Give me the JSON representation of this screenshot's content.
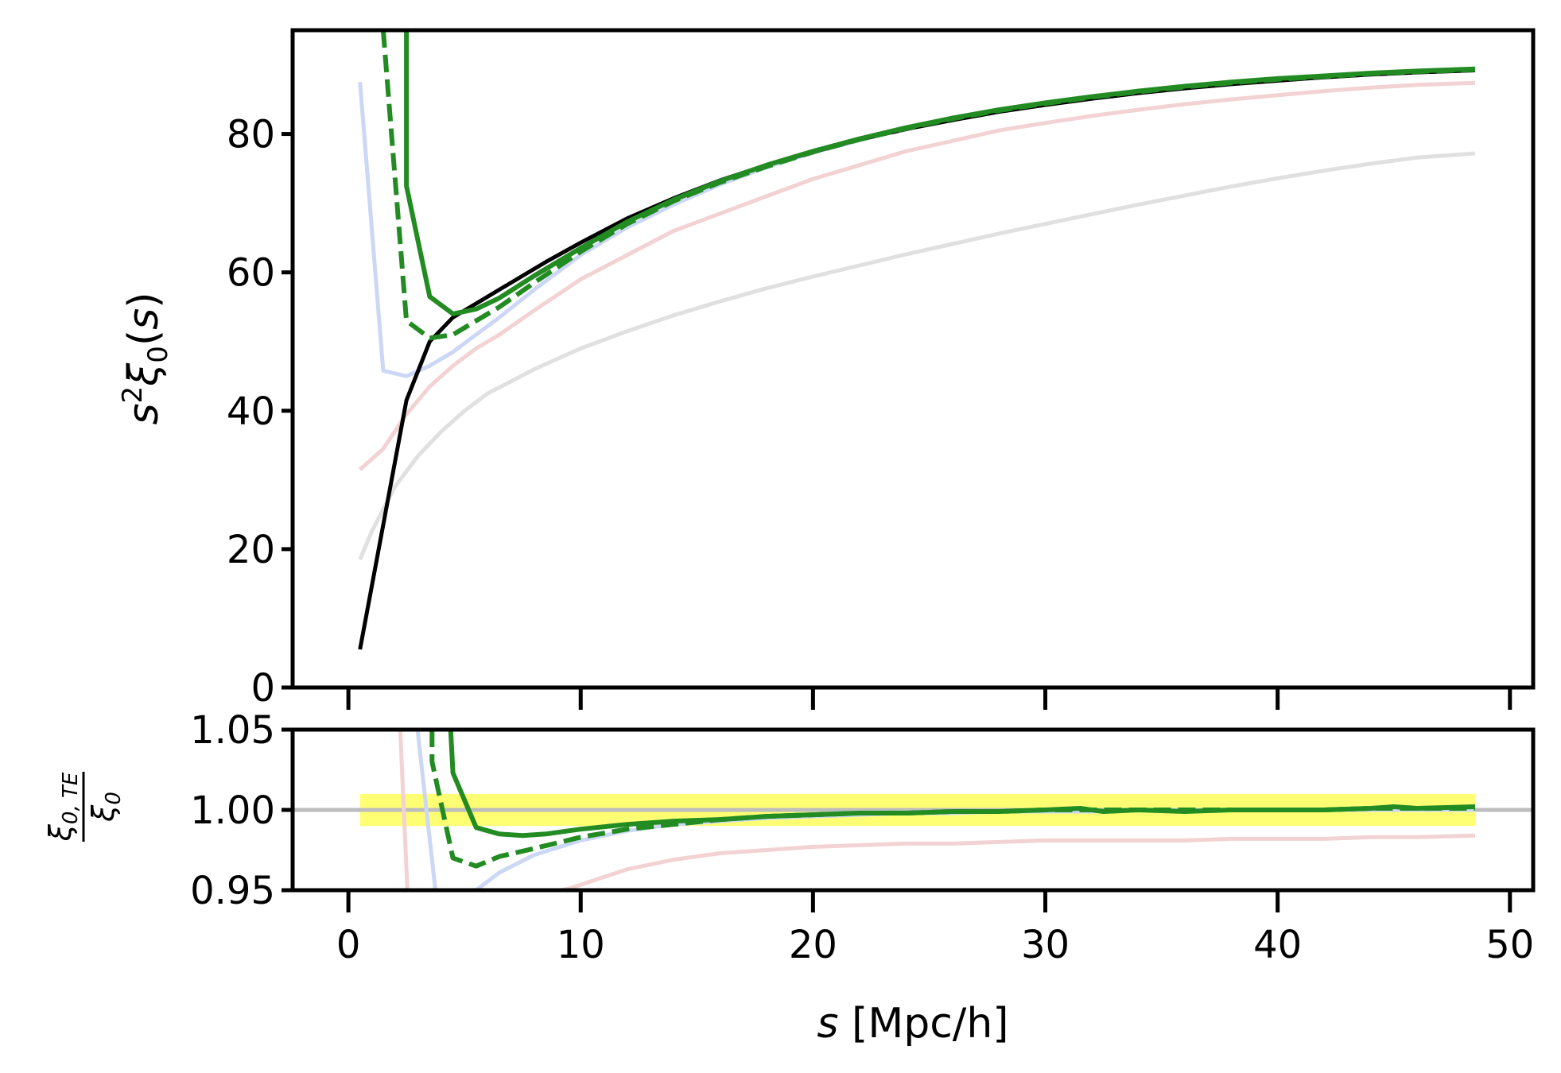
{
  "chart_data": [
    {
      "type": "line",
      "panel": "top",
      "ylabel": "s²ξ₀(s)",
      "xlim": [
        -2.4,
        51
      ],
      "ylim": [
        0,
        95
      ],
      "yticks": [
        0,
        20,
        40,
        60,
        80
      ],
      "ytick_labels": [
        "0",
        "20",
        "40",
        "60",
        "80"
      ],
      "xticks": [
        0,
        10,
        20,
        30,
        40,
        50
      ],
      "series": [
        {
          "color": "#e0e0e0",
          "width": 5,
          "dash": "solid",
          "x": [
            0.5,
            1,
            2,
            3,
            4,
            5,
            6,
            8,
            10,
            12,
            14,
            16,
            18,
            20,
            22,
            24,
            26,
            28,
            30,
            32,
            34,
            36,
            38,
            40,
            42,
            44,
            46,
            48.5
          ],
          "y": [
            18.5,
            22.5,
            29,
            33.5,
            37,
            40,
            42.5,
            46,
            49,
            51.5,
            53.8,
            55.8,
            57.7,
            59.4,
            61,
            62.6,
            64.1,
            65.6,
            67,
            68.4,
            69.8,
            71.1,
            72.4,
            73.6,
            74.7,
            75.7,
            76.6,
            77.2
          ]
        },
        {
          "color": "#f2d2d2",
          "width": 5,
          "dash": "solid",
          "x": [
            0.5,
            1.5,
            2.5,
            3.5,
            4.5,
            5.5,
            6.5,
            8,
            10,
            12,
            14,
            16,
            18,
            20,
            22,
            24,
            26,
            28,
            30,
            32,
            34,
            36,
            38,
            40,
            42,
            44,
            46,
            48.5
          ],
          "y": [
            31.5,
            34.5,
            39.5,
            43.5,
            46.5,
            49,
            51,
            54.5,
            59,
            62.5,
            66,
            68.5,
            71,
            73.5,
            75.5,
            77.5,
            79,
            80.5,
            81.6,
            82.6,
            83.5,
            84.3,
            85,
            85.6,
            86.2,
            86.7,
            87.1,
            87.4
          ]
        },
        {
          "color": "#ccd7f5",
          "width": 5,
          "dash": "solid",
          "x": [
            0.5,
            1.5,
            2.5,
            3.5,
            4.5,
            5.5,
            6.5,
            8,
            10,
            12,
            14,
            16,
            18,
            20,
            22,
            24,
            26,
            28,
            30,
            32,
            34,
            36,
            38,
            40,
            42,
            44,
            46,
            48.5
          ],
          "y": [
            87.5,
            45.8,
            45,
            46.5,
            48.5,
            51,
            53.5,
            57.5,
            62.5,
            66.5,
            69.8,
            72.7,
            75.2,
            77.3,
            79.1,
            80.8,
            82.2,
            83.4,
            84.4,
            85.3,
            86.1,
            86.7,
            87.3,
            87.8,
            88.2,
            88.6,
            89,
            89.2
          ]
        },
        {
          "color": "#000000",
          "width": 5,
          "dash": "solid",
          "x": [
            0.5,
            1.5,
            2.5,
            3.5,
            4.5,
            5.5,
            6.5,
            7.5,
            8.5,
            10,
            12,
            14,
            16,
            18,
            20,
            22,
            24,
            26,
            28,
            30,
            32,
            34,
            36,
            38,
            40,
            42,
            44,
            46,
            48.5
          ],
          "y": [
            5.5,
            23.5,
            41.5,
            50,
            53.5,
            55.5,
            57.5,
            59.5,
            61.5,
            64.3,
            67.8,
            70.7,
            73.3,
            75.5,
            77.4,
            79.2,
            80.7,
            82,
            83.2,
            84.2,
            85.1,
            85.9,
            86.6,
            87.2,
            87.7,
            88.2,
            88.6,
            88.9,
            89.2
          ]
        },
        {
          "color": "#228b22",
          "width": 6,
          "dash": "dashed",
          "x": [
            1.5,
            2.5,
            3.5,
            4.5,
            5.5,
            6.5,
            8,
            10,
            12,
            14,
            16,
            18,
            20,
            22,
            24,
            26,
            28,
            30,
            32,
            34,
            36,
            38,
            40,
            42,
            44,
            46,
            48.5
          ],
          "y": [
            95,
            53,
            50.5,
            51,
            53,
            55,
            58.5,
            63,
            67,
            70.3,
            73,
            75.3,
            77.4,
            79.2,
            80.8,
            82.2,
            83.4,
            84.4,
            85.3,
            86.1,
            86.8,
            87.4,
            87.9,
            88.3,
            88.7,
            89,
            89.3
          ]
        },
        {
          "color": "#228b22",
          "width": 6,
          "dash": "solid",
          "x": [
            2.5,
            2.5,
            3.5,
            4.5,
            5.5,
            6.5,
            8,
            10,
            12,
            14,
            16,
            18,
            20,
            22,
            24,
            26,
            28,
            30,
            32,
            34,
            36,
            38,
            40,
            42,
            44,
            46,
            48.5
          ],
          "y": [
            95,
            72.5,
            56.5,
            54,
            54.7,
            56.3,
            59.5,
            63.5,
            67.3,
            70.5,
            73.2,
            75.5,
            77.5,
            79.3,
            80.9,
            82.3,
            83.5,
            84.5,
            85.4,
            86.2,
            86.9,
            87.5,
            88,
            88.4,
            88.8,
            89.1,
            89.4
          ]
        }
      ]
    },
    {
      "type": "line",
      "panel": "bottom",
      "ylabel_numerator": "ξ0,TE",
      "ylabel_denominator": "ξ0",
      "xlabel": "s [Mpc/h]",
      "xlim": [
        -2.4,
        51
      ],
      "ylim": [
        0.95,
        1.05
      ],
      "yticks": [
        0.95,
        1.0,
        1.05
      ],
      "ytick_labels": [
        "0.95",
        "1.00",
        "1.05"
      ],
      "xticks": [
        0,
        10,
        20,
        30,
        40,
        50
      ],
      "xtick_labels": [
        "0",
        "10",
        "20",
        "30",
        "40",
        "50"
      ],
      "band": {
        "y": [
          0.99,
          1.01
        ],
        "x": [
          0.5,
          48.5
        ],
        "color": "#ffff00",
        "opacity": 0.55
      },
      "reference_line": {
        "y": 1.0,
        "color": "#bdbdbd"
      },
      "series": [
        {
          "color": "#f2d2d2",
          "width": 5,
          "dash": "solid",
          "x": [
            2.2,
            2.6,
            9.5,
            12,
            14,
            16,
            18,
            20,
            22,
            24,
            26,
            28,
            30,
            32,
            34,
            36,
            38,
            40,
            42,
            44,
            46,
            48.5
          ],
          "y": [
            1.06,
            0.93,
            0.951,
            0.963,
            0.969,
            0.973,
            0.975,
            0.977,
            0.978,
            0.979,
            0.979,
            0.98,
            0.981,
            0.981,
            0.981,
            0.981,
            0.982,
            0.982,
            0.982,
            0.983,
            0.983,
            0.984
          ]
        },
        {
          "color": "#ccd7f5",
          "width": 5,
          "dash": "solid",
          "x": [
            2.9,
            3.9,
            5.5,
            6.5,
            8,
            10,
            12,
            14,
            16,
            18,
            20,
            22,
            24,
            26,
            28,
            30,
            32,
            34,
            36,
            38,
            40,
            42,
            44,
            46,
            48.5
          ],
          "y": [
            1.06,
            0.93,
            0.95,
            0.961,
            0.972,
            0.981,
            0.987,
            0.991,
            0.993,
            0.995,
            0.996,
            0.997,
            0.998,
            0.998,
            0.999,
            0.999,
            0.999,
            1.0,
            1.0,
            1.0,
            1.0,
            1.0,
            1.0,
            1.0,
            1.0
          ]
        },
        {
          "color": "#228b22",
          "width": 6,
          "dash": "dashed",
          "x": [
            3.6,
            3.6,
            4.5,
            5.5,
            6.5,
            8,
            10,
            12,
            14,
            16,
            18,
            20,
            22,
            24,
            26,
            28,
            30,
            32,
            34,
            36,
            38,
            40,
            42,
            44,
            46,
            48.5
          ],
          "y": [
            1.05,
            1.03,
            0.97,
            0.965,
            0.971,
            0.976,
            0.983,
            0.988,
            0.991,
            0.994,
            0.996,
            0.997,
            0.998,
            0.998,
            0.999,
            0.999,
            1.0,
            1.0,
            1.0,
            1.0,
            1.0,
            1.0,
            1.0,
            1.001,
            1.001,
            1.001
          ]
        },
        {
          "color": "#228b22",
          "width": 6,
          "dash": "solid",
          "x": [
            4.4,
            4.5,
            5.5,
            6.5,
            7.5,
            8.5,
            10,
            12,
            14,
            16,
            18,
            20,
            22,
            24,
            26,
            28,
            30,
            31.5,
            32.5,
            34,
            36,
            38,
            40,
            42,
            44,
            45,
            46,
            48.5
          ],
          "y": [
            1.05,
            1.023,
            0.989,
            0.985,
            0.984,
            0.985,
            0.988,
            0.991,
            0.993,
            0.994,
            0.996,
            0.997,
            0.998,
            0.998,
            0.999,
            0.999,
            1.0,
            1.001,
            0.999,
            1.0,
            0.999,
            1.0,
            1.0,
            1.0,
            1.001,
            1.002,
            1.001,
            1.002
          ]
        }
      ]
    }
  ]
}
